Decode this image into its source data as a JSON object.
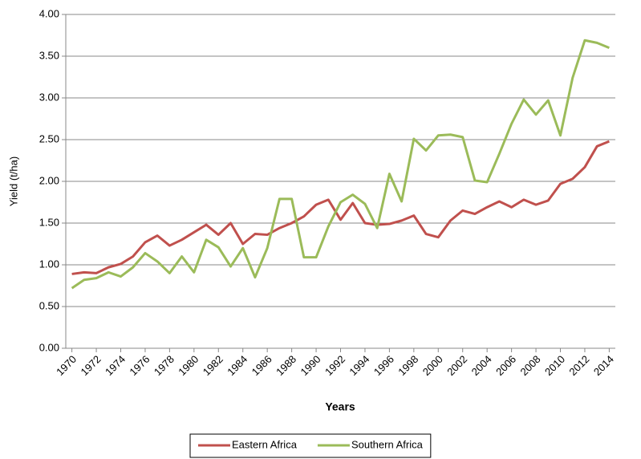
{
  "chart_data": {
    "type": "line",
    "y_label": "Yield (t/ha)",
    "x_label": "Years",
    "x": [
      1970,
      1971,
      1972,
      1973,
      1974,
      1975,
      1976,
      1977,
      1978,
      1979,
      1980,
      1981,
      1982,
      1983,
      1984,
      1985,
      1986,
      1987,
      1988,
      1989,
      1990,
      1991,
      1992,
      1993,
      1994,
      1995,
      1996,
      1997,
      1998,
      1999,
      2000,
      2001,
      2002,
      2003,
      2004,
      2005,
      2006,
      2007,
      2008,
      2009,
      2010,
      2011,
      2012,
      2013,
      2014
    ],
    "series": [
      {
        "name": "Eastern Africa",
        "color": "#c0504d",
        "values": [
          0.89,
          0.91,
          0.9,
          0.97,
          1.01,
          1.1,
          1.27,
          1.35,
          1.23,
          1.3,
          1.39,
          1.48,
          1.36,
          1.5,
          1.25,
          1.37,
          1.36,
          1.44,
          1.5,
          1.58,
          1.72,
          1.78,
          1.54,
          1.74,
          1.5,
          1.48,
          1.49,
          1.53,
          1.59,
          1.37,
          1.33,
          1.53,
          1.65,
          1.61,
          1.69,
          1.76,
          1.69,
          1.78,
          1.72,
          1.77,
          1.97,
          2.03,
          2.17,
          2.42,
          2.48
        ]
      },
      {
        "name": "Southern Africa",
        "color": "#9bbb59",
        "values": [
          0.72,
          0.82,
          0.84,
          0.91,
          0.86,
          0.97,
          1.14,
          1.04,
          0.9,
          1.1,
          0.91,
          1.3,
          1.21,
          0.98,
          1.2,
          0.85,
          1.2,
          1.79,
          1.79,
          1.09,
          1.09,
          1.46,
          1.75,
          1.84,
          1.73,
          1.44,
          2.09,
          1.76,
          2.51,
          2.37,
          2.55,
          2.56,
          2.53,
          2.01,
          1.99,
          2.33,
          2.69,
          2.98,
          2.8,
          2.97,
          2.55,
          3.24,
          3.69,
          3.66,
          3.6
        ]
      }
    ],
    "xlim": [
      1969.5,
      2014.5
    ],
    "xticks": [
      1970,
      1972,
      1974,
      1976,
      1978,
      1980,
      1982,
      1984,
      1986,
      1988,
      1990,
      1992,
      1994,
      1996,
      1998,
      2000,
      2002,
      2004,
      2006,
      2008,
      2010,
      2012,
      2014
    ],
    "ylim": [
      0,
      4
    ],
    "yticks": [
      {
        "value": 0,
        "label": "0.00"
      },
      {
        "value": 0.5,
        "label": "0.50"
      },
      {
        "value": 1,
        "label": "1.00"
      },
      {
        "value": 1.5,
        "label": "1.50"
      },
      {
        "value": 2,
        "label": "2.00"
      },
      {
        "value": 2.5,
        "label": "2.50"
      },
      {
        "value": 3,
        "label": "3.00"
      },
      {
        "value": 3.5,
        "label": "3.50"
      },
      {
        "value": 4,
        "label": "4.00"
      }
    ],
    "grid": true,
    "legend": "bottom"
  }
}
